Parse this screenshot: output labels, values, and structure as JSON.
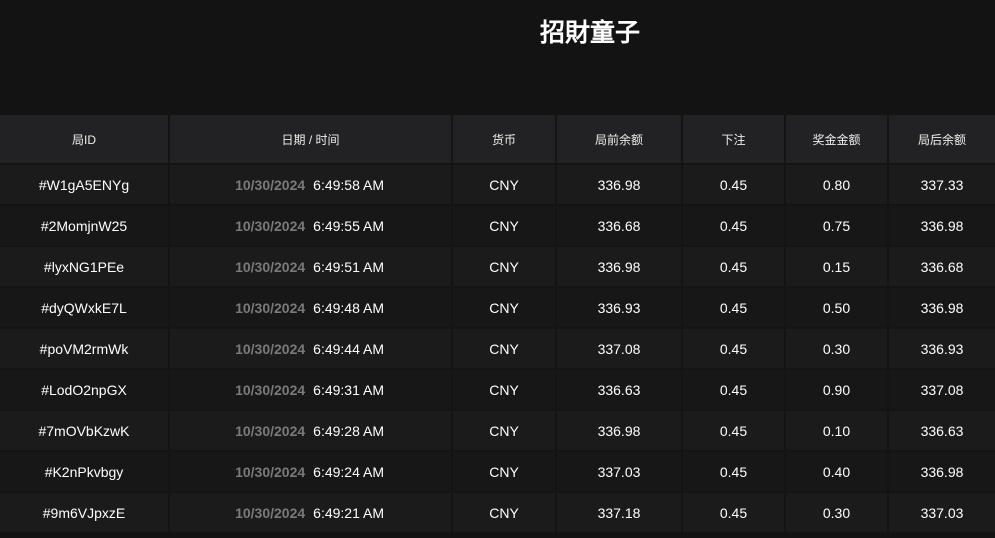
{
  "header": {
    "title": "招財童子"
  },
  "table": {
    "columns": [
      "局ID",
      "日期 / 时间",
      "货币",
      "局前余额",
      "下注",
      "奖金金额",
      "局后余额"
    ],
    "rows": [
      {
        "id": "#W1gA5ENYg",
        "date": "10/30/2024",
        "time": "6:49:58 AM",
        "currency": "CNY",
        "before": "336.98",
        "bet": "0.45",
        "win": "0.80",
        "after": "337.33"
      },
      {
        "id": "#2MomjnW25",
        "date": "10/30/2024",
        "time": "6:49:55 AM",
        "currency": "CNY",
        "before": "336.68",
        "bet": "0.45",
        "win": "0.75",
        "after": "336.98"
      },
      {
        "id": "#lyxNG1PEe",
        "date": "10/30/2024",
        "time": "6:49:51 AM",
        "currency": "CNY",
        "before": "336.98",
        "bet": "0.45",
        "win": "0.15",
        "after": "336.68"
      },
      {
        "id": "#dyQWxkE7L",
        "date": "10/30/2024",
        "time": "6:49:48 AM",
        "currency": "CNY",
        "before": "336.93",
        "bet": "0.45",
        "win": "0.50",
        "after": "336.98"
      },
      {
        "id": "#poVM2rmWk",
        "date": "10/30/2024",
        "time": "6:49:44 AM",
        "currency": "CNY",
        "before": "337.08",
        "bet": "0.45",
        "win": "0.30",
        "after": "336.93"
      },
      {
        "id": "#LodO2npGX",
        "date": "10/30/2024",
        "time": "6:49:31 AM",
        "currency": "CNY",
        "before": "336.63",
        "bet": "0.45",
        "win": "0.90",
        "after": "337.08"
      },
      {
        "id": "#7mOVbKzwK",
        "date": "10/30/2024",
        "time": "6:49:28 AM",
        "currency": "CNY",
        "before": "336.98",
        "bet": "0.45",
        "win": "0.10",
        "after": "336.63"
      },
      {
        "id": "#K2nPkvbgy",
        "date": "10/30/2024",
        "time": "6:49:24 AM",
        "currency": "CNY",
        "before": "337.03",
        "bet": "0.45",
        "win": "0.40",
        "after": "336.98"
      },
      {
        "id": "#9m6VJpxzE",
        "date": "10/30/2024",
        "time": "6:49:21 AM",
        "currency": "CNY",
        "before": "337.18",
        "bet": "0.45",
        "win": "0.30",
        "after": "337.03"
      }
    ]
  }
}
